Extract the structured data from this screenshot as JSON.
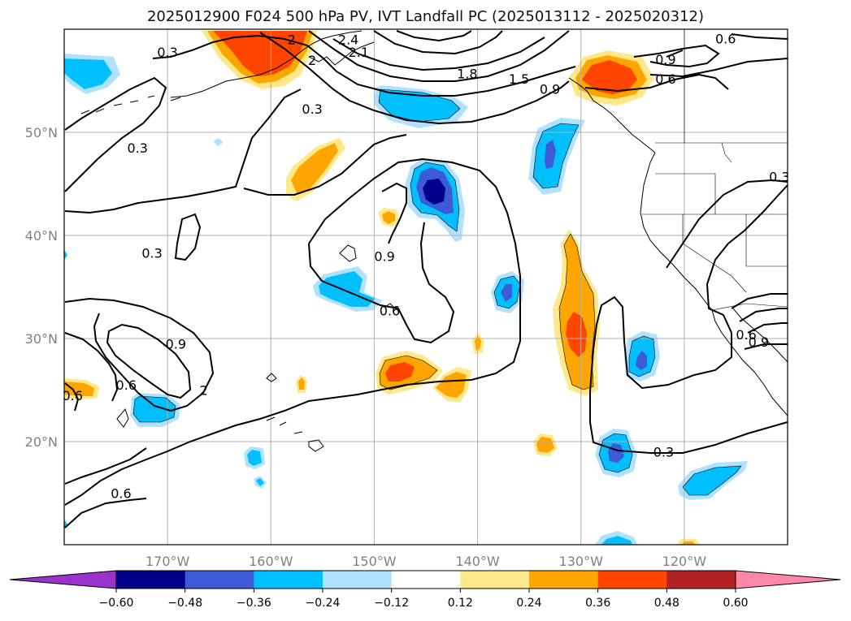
{
  "title": "2025012900 F024 500 hPa PV, IVT Landfall PC (2025013112 - 2025020312)",
  "map": {
    "lon_range": [
      -180,
      -110
    ],
    "lat_range": [
      10,
      60
    ],
    "lat_ticks": [
      {
        "value": 50,
        "label": "50°N"
      },
      {
        "value": 40,
        "label": "40°N"
      },
      {
        "value": 30,
        "label": "30°N"
      },
      {
        "value": 20,
        "label": "20°N"
      }
    ],
    "lon_ticks": [
      {
        "value": -170,
        "label": "170°W"
      },
      {
        "value": -160,
        "label": "160°W"
      },
      {
        "value": -150,
        "label": "150°W"
      },
      {
        "value": -140,
        "label": "140°W"
      },
      {
        "value": -130,
        "label": "130°W"
      },
      {
        "value": -120,
        "label": "120°W"
      }
    ],
    "gridlines": true,
    "colors": {
      "axis_text": "#808080",
      "grid": "#b0b0b0",
      "coast": "#000000",
      "contour": "#000000"
    },
    "contour_labels": [
      {
        "text": "2.4",
        "lon": -152.5,
        "lat": 59.0
      },
      {
        "text": "2.1",
        "lon": -151.5,
        "lat": 57.8
      },
      {
        "text": "1.8",
        "lon": -141.0,
        "lat": 55.7
      },
      {
        "text": "1.5",
        "lon": -136.0,
        "lat": 55.2
      },
      {
        "text": "0.9",
        "lon": -133.0,
        "lat": 54.2
      },
      {
        "text": "2",
        "lon": -158.0,
        "lat": 59.0
      },
      {
        "text": "2",
        "lon": -156.0,
        "lat": 57.0
      },
      {
        "text": "0.3",
        "lon": -170.0,
        "lat": 57.8
      },
      {
        "text": "0.3",
        "lon": -156.0,
        "lat": 52.3
      },
      {
        "text": "0.3",
        "lon": -172.9,
        "lat": 48.5
      },
      {
        "text": "0.3",
        "lon": -171.5,
        "lat": 38.3
      },
      {
        "text": "0.6",
        "lon": -116.0,
        "lat": 59.1
      },
      {
        "text": "0.9",
        "lon": -121.8,
        "lat": 57.1
      },
      {
        "text": "0.6",
        "lon": -121.8,
        "lat": 55.2
      },
      {
        "text": "0.3",
        "lon": -110.8,
        "lat": 45.7
      },
      {
        "text": "0.9",
        "lon": -149.0,
        "lat": 38.0
      },
      {
        "text": "0.6",
        "lon": -148.5,
        "lat": 32.7
      },
      {
        "text": "0.9",
        "lon": -169.2,
        "lat": 29.5
      },
      {
        "text": "2",
        "lon": -166.5,
        "lat": 25.0
      },
      {
        "text": "0.6",
        "lon": -174.0,
        "lat": 25.5
      },
      {
        "text": "0.6",
        "lon": -179.2,
        "lat": 24.5
      },
      {
        "text": "0.6",
        "lon": -174.5,
        "lat": 15.0
      },
      {
        "text": "0.3",
        "lon": -122.0,
        "lat": 19.0
      },
      {
        "text": "0.6",
        "lon": -114.0,
        "lat": 30.4
      },
      {
        "text": "0.9",
        "lon": -112.8,
        "lat": 29.7
      }
    ]
  },
  "colorbar": {
    "levels": [
      -0.6,
      -0.48,
      -0.36,
      -0.24,
      -0.12,
      0.12,
      0.24,
      0.36,
      0.48,
      0.6
    ],
    "tick_labels": [
      "−0.60",
      "−0.48",
      "−0.36",
      "−0.24",
      "−0.12",
      "0.12",
      "0.24",
      "0.36",
      "0.48",
      "0.60"
    ],
    "colors": [
      "#9933cc",
      "#00008b",
      "#3d5bd6",
      "#00bfff",
      "#b0e2ff",
      "#ffffff",
      "#ffe88a",
      "#ffa500",
      "#ff4500",
      "#b22222",
      "#ff88aa"
    ]
  }
}
